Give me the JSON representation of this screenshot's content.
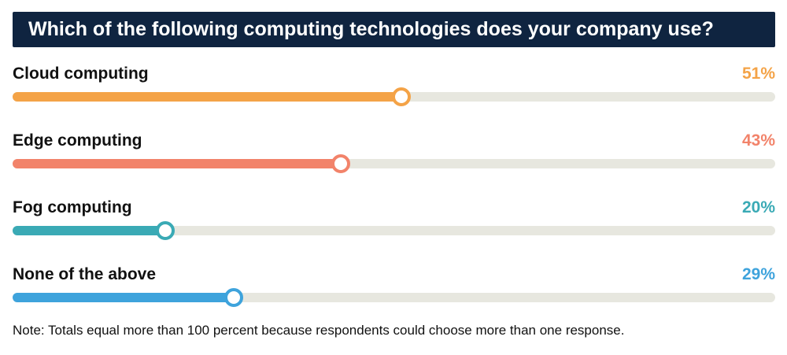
{
  "title": "Which of the following computing technologies does your company use?",
  "note": "Note: Totals equal more than 100 percent because respondents could choose more than one response.",
  "chart_data": {
    "type": "bar",
    "orientation": "horizontal",
    "categories": [
      "Cloud computing",
      "Edge computing",
      "Fog computing",
      "None of the above"
    ],
    "values": [
      51,
      43,
      20,
      29
    ],
    "value_labels": [
      "51%",
      "43%",
      "20%",
      "29%"
    ],
    "colors": [
      "#f4a347",
      "#f2836a",
      "#3aaab5",
      "#3ea3dc"
    ],
    "xlim": [
      0,
      100
    ]
  }
}
